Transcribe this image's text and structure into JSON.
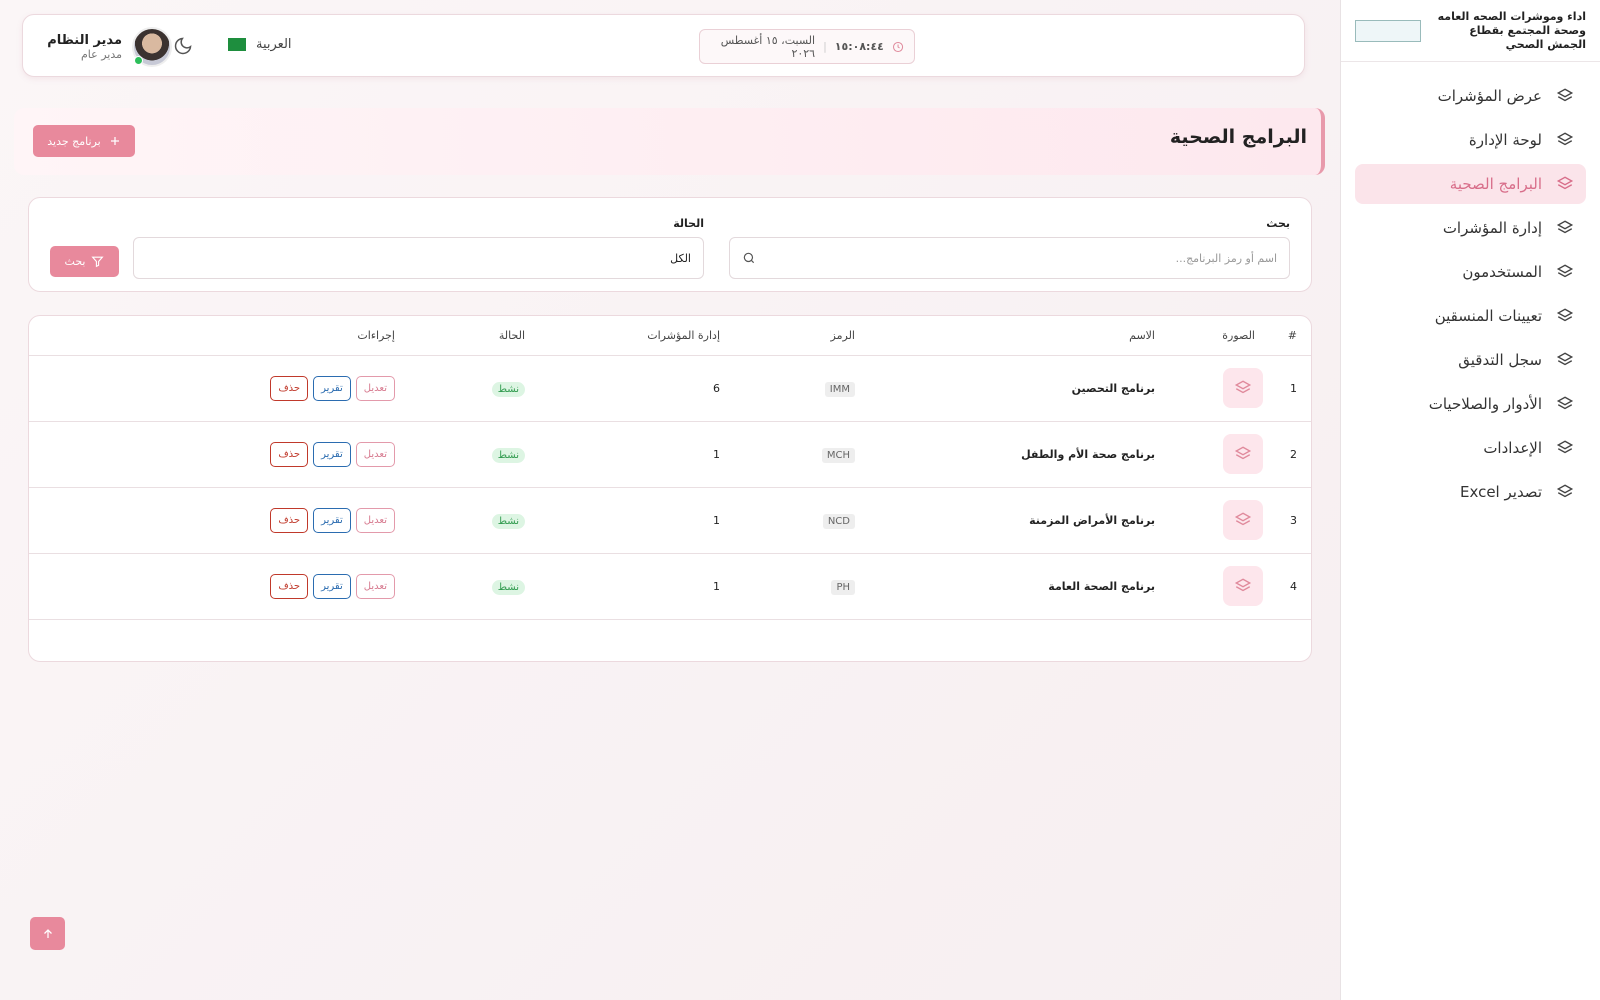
{
  "sidebar": {
    "brand": "اداء وموشرات الصحه العامه وصحة المجتمع بقطاع الجمش الصحي",
    "nav": [
      "عرض المؤشرات",
      "لوحة الإدارة",
      "البرامج الصحية",
      "إدارة المؤشرات",
      "المستخدمون",
      "تعيينات المنسقين",
      "سجل التدقيق",
      "الأدوار والصلاحيات",
      "الإعدادات",
      "تصدير Excel"
    ],
    "active": 2
  },
  "header": {
    "user_name": "مدير النظام",
    "user_role": "مدير عام",
    "language": "العربية",
    "time": "١٥:٠٨:٤٤",
    "date": "السبت، ١٥ أغسطس ٢٠٢٦"
  },
  "page": {
    "title": "البرامج الصحية",
    "new_button": "برنامج جديد"
  },
  "filters": {
    "search_label": "بحث",
    "search_placeholder": "اسم أو رمز البرنامج...",
    "status_label": "الحالة",
    "status_value": "الكل",
    "button": "بحث"
  },
  "table": {
    "headers": [
      "#",
      "الصورة",
      "الاسم",
      "الرمز",
      "إدارة المؤشرات",
      "الحالة",
      "إجراءات"
    ],
    "rows": [
      {
        "num": 1,
        "name": "برنامج التحصين",
        "code": "IMM",
        "indicators": 6,
        "status": "نشط"
      },
      {
        "num": 2,
        "name": "برنامج صحة الأم والطفل",
        "code": "MCH",
        "indicators": 1,
        "status": "نشط"
      },
      {
        "num": 3,
        "name": "برنامج الأمراض المزمنة",
        "code": "NCD",
        "indicators": 1,
        "status": "نشط"
      },
      {
        "num": 4,
        "name": "برنامج الصحة العامة",
        "code": "PH",
        "indicators": 1,
        "status": "نشط"
      }
    ],
    "actions": [
      "تعديل",
      "تقرير",
      "حذف"
    ]
  }
}
